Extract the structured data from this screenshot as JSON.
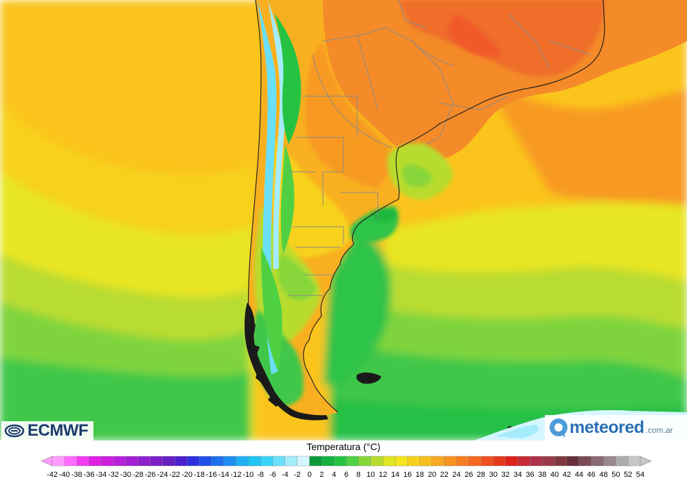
{
  "legend": {
    "title": "Temperatura (°C)",
    "ticks": [
      "-42",
      "-40",
      "-38",
      "-36",
      "-34",
      "-32",
      "-30",
      "-28",
      "-26",
      "-24",
      "-22",
      "-20",
      "-18",
      "-16",
      "-14",
      "-12",
      "-10",
      "-8",
      "-6",
      "-4",
      "-2",
      "0",
      "2",
      "4",
      "6",
      "8",
      "10",
      "12",
      "14",
      "16",
      "18",
      "20",
      "22",
      "24",
      "26",
      "28",
      "30",
      "32",
      "34",
      "36",
      "38",
      "40",
      "42",
      "44",
      "46",
      "48",
      "50",
      "52",
      "54"
    ],
    "colors": [
      "#ff9cff",
      "#ff6cff",
      "#f23cf2",
      "#e01ee6",
      "#cc1fe0",
      "#b81fda",
      "#a31fd3",
      "#8e1fcc",
      "#7a1fc6",
      "#661fbf",
      "#4a1fcf",
      "#2f2fe0",
      "#1f4fea",
      "#1f6ff0",
      "#1f8ff3",
      "#1faff5",
      "#1fc5f5",
      "#39d3f7",
      "#6adff9",
      "#a4ecfc",
      "#d6f7ff",
      "#0a9a3a",
      "#15b13e",
      "#26c342",
      "#4fd043",
      "#87d63a",
      "#b7dc2f",
      "#dfe520",
      "#f4e51c",
      "#f7d21d",
      "#f8bd1f",
      "#f9a821",
      "#f99322",
      "#f87e22",
      "#f46820",
      "#ee501e",
      "#e6381c",
      "#dc201a",
      "#c72a35",
      "#b0324a",
      "#983a4a",
      "#7f3a40",
      "#66303a",
      "#7b4c56",
      "#8a6a72",
      "#9a888e",
      "#acacac",
      "#c6c6c6"
    ]
  },
  "logos": {
    "ecmwf_text": "ECMWF",
    "meteored_text": "meteored",
    "meteored_domain": ".com.ar"
  },
  "map": {
    "variable": "temperature",
    "colors": {
      "ocean_cold": "#34c94a",
      "ocean_cool": "#7fd43c",
      "ocean_mild": "#e3e621",
      "ocean_warm": "#fbc41e",
      "land_hot": "#f7872a",
      "land_very_hot": "#f0702c",
      "antarctic": "#d6f7ff",
      "andes": "#a4ecfc",
      "borders": "#888888"
    }
  }
}
